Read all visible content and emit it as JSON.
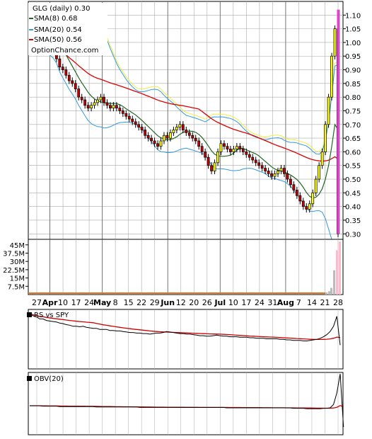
{
  "chart_data": [
    {
      "type": "candlestick",
      "title": "GLG (daily) 0.30",
      "watermark": "OptionChance.com",
      "x_tick_labels": [
        "27",
        "Apr",
        "10",
        "17",
        "24",
        "May",
        "8",
        "15",
        "22",
        "29",
        "Jun",
        "12",
        "20",
        "26",
        "Jul",
        "10",
        "17",
        "24",
        "31",
        "Aug",
        "7",
        "14",
        "21",
        "28"
      ],
      "x_month_labels": [
        "Apr",
        "May",
        "Jun",
        "Jul",
        "Aug"
      ],
      "ylim": [
        0.28,
        1.15
      ],
      "y_tick_labels": [
        "1.10",
        "1.05",
        "1.00",
        "0.95",
        "0.90",
        "0.85",
        "0.80",
        "0.75",
        "0.70",
        "0.65",
        "0.60",
        "0.55",
        "0.50",
        "0.45",
        "0.40",
        "0.35",
        "0.30"
      ],
      "y_ticks": [
        1.1,
        1.05,
        1.0,
        0.95,
        0.9,
        0.85,
        0.8,
        0.75,
        0.7,
        0.65,
        0.6,
        0.55,
        0.5,
        0.45,
        0.4,
        0.35,
        0.3
      ],
      "legend": [
        {
          "label": "SMA(8) 0.68",
          "color": "#226622"
        },
        {
          "label": "SMA(20) 0.54",
          "color": "#3399dd"
        },
        {
          "label": "SMA(50) 0.56",
          "color": "#dd0000"
        }
      ],
      "grid": true,
      "series": [
        {
          "name": "GLG",
          "close": [
            1.03,
            1.02,
            0.99,
            0.97,
            0.94,
            0.91,
            0.9,
            0.88,
            0.86,
            0.85,
            0.83,
            0.8,
            0.79,
            0.77,
            0.76,
            0.77,
            0.78,
            0.79,
            0.8,
            0.78,
            0.77,
            0.76,
            0.77,
            0.76,
            0.75,
            0.74,
            0.73,
            0.72,
            0.71,
            0.7,
            0.69,
            0.68,
            0.66,
            0.65,
            0.64,
            0.63,
            0.62,
            0.64,
            0.66,
            0.65,
            0.67,
            0.68,
            0.69,
            0.7,
            0.68,
            0.67,
            0.66,
            0.65,
            0.64,
            0.62,
            0.6,
            0.58,
            0.55,
            0.53,
            0.56,
            0.6,
            0.63,
            0.62,
            0.61,
            0.6,
            0.61,
            0.62,
            0.61,
            0.6,
            0.59,
            0.58,
            0.57,
            0.56,
            0.55,
            0.54,
            0.53,
            0.52,
            0.51,
            0.52,
            0.53,
            0.54,
            0.52,
            0.5,
            0.48,
            0.46,
            0.44,
            0.42,
            0.4,
            0.39,
            0.41,
            0.45,
            0.5,
            0.55,
            0.6,
            0.7,
            0.8,
            0.95,
            1.05,
            0.3
          ]
        }
      ]
    },
    {
      "type": "bar",
      "title": "Volume",
      "y_tick_labels": [
        "45M",
        "37.5M",
        "30M",
        "22.5M",
        "15M",
        "7.5M"
      ],
      "y_ticks": [
        45,
        37.5,
        30,
        22.5,
        15,
        7.5
      ],
      "ylim": [
        0,
        50
      ]
    },
    {
      "type": "line",
      "title": "RS vs SPY",
      "series": [
        {
          "name": "RS vs SPY",
          "values": [
            1.0,
            0.96,
            0.94,
            0.9,
            0.9,
            0.87,
            0.86,
            0.85,
            0.84,
            0.82,
            0.81,
            0.79,
            0.78,
            0.76,
            0.76,
            0.75,
            0.76,
            0.74,
            0.73,
            0.72,
            0.72,
            0.7,
            0.7,
            0.7,
            0.68,
            0.68,
            0.67,
            0.67,
            0.66,
            0.65,
            0.64,
            0.64,
            0.63,
            0.63,
            0.62,
            0.62,
            0.61,
            0.62,
            0.63,
            0.63,
            0.64,
            0.66,
            0.65,
            0.64,
            0.63,
            0.62,
            0.62,
            0.61,
            0.61,
            0.6,
            0.59,
            0.58,
            0.58,
            0.57,
            0.57,
            0.58,
            0.59,
            0.58,
            0.57,
            0.57,
            0.56,
            0.56,
            0.56,
            0.55,
            0.55,
            0.55,
            0.54,
            0.54,
            0.53,
            0.53,
            0.53,
            0.52,
            0.52,
            0.52,
            0.52,
            0.51,
            0.51,
            0.5,
            0.5,
            0.49,
            0.49,
            0.49,
            0.48,
            0.48,
            0.49,
            0.5,
            0.51,
            0.53,
            0.56,
            0.6,
            0.66,
            0.76,
            0.95,
            0.4
          ]
        }
      ]
    },
    {
      "type": "line",
      "title": "OBV(20)",
      "series": [
        {
          "name": "OBV(20)",
          "values": [
            0.25,
            0.25,
            0.25,
            0.25,
            0.24,
            0.24,
            0.24,
            0.24,
            0.24,
            0.23,
            0.23,
            0.23,
            0.23,
            0.23,
            0.23,
            0.23,
            0.23,
            0.23,
            0.23,
            0.23,
            0.22,
            0.22,
            0.22,
            0.22,
            0.22,
            0.22,
            0.22,
            0.22,
            0.22,
            0.22,
            0.22,
            0.22,
            0.22,
            0.21,
            0.21,
            0.21,
            0.21,
            0.21,
            0.21,
            0.21,
            0.21,
            0.21,
            0.21,
            0.21,
            0.21,
            0.21,
            0.21,
            0.21,
            0.21,
            0.21,
            0.21,
            0.21,
            0.21,
            0.21,
            0.21,
            0.21,
            0.21,
            0.21,
            0.21,
            0.2,
            0.2,
            0.2,
            0.2,
            0.2,
            0.2,
            0.2,
            0.2,
            0.2,
            0.2,
            0.2,
            0.2,
            0.2,
            0.2,
            0.2,
            0.2,
            0.2,
            0.2,
            0.2,
            0.2,
            0.19,
            0.19,
            0.19,
            0.19,
            0.18,
            0.18,
            0.18,
            0.18,
            0.18,
            0.19,
            0.19,
            0.2,
            0.28,
            0.55,
            1.0,
            -0.25
          ]
        }
      ]
    }
  ],
  "colors": {
    "up": "#ffff00",
    "down": "#cc0000",
    "sma8": "#226622",
    "sma20": "#3399dd",
    "sma50": "#dd0000",
    "grid": "#aaaaaa",
    "vol": "#888888"
  }
}
